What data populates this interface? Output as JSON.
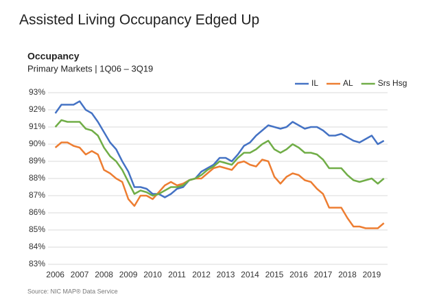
{
  "chart_data": {
    "type": "line",
    "page_title": "Assisted Living Occupancy Edged Up",
    "title": "Occupancy",
    "subtitle": "Primary Markets | 1Q06 – 3Q19",
    "source": "Source: NIC MAP® Data Service",
    "x": [
      2006,
      2006.25,
      2006.5,
      2006.75,
      2007,
      2007.25,
      2007.5,
      2007.75,
      2008,
      2008.25,
      2008.5,
      2008.75,
      2009,
      2009.25,
      2009.5,
      2009.75,
      2010,
      2010.25,
      2010.5,
      2010.75,
      2011,
      2011.25,
      2011.5,
      2011.75,
      2012,
      2012.25,
      2012.5,
      2012.75,
      2013,
      2013.25,
      2013.5,
      2013.75,
      2014,
      2014.25,
      2014.5,
      2014.75,
      2015,
      2015.25,
      2015.5,
      2015.75,
      2016,
      2016.25,
      2016.5,
      2016.75,
      2017,
      2017.25,
      2017.5,
      2017.75,
      2018,
      2018.25,
      2018.5,
      2018.75,
      2019,
      2019.25,
      2019.5
    ],
    "series": [
      {
        "name": "IL",
        "color": "#4472c4",
        "values": [
          91.8,
          92.3,
          92.3,
          92.3,
          92.5,
          92.0,
          91.8,
          91.3,
          90.7,
          90.1,
          89.7,
          89.0,
          88.4,
          87.5,
          87.5,
          87.4,
          87.1,
          87.1,
          86.9,
          87.1,
          87.4,
          87.5,
          87.9,
          88.0,
          88.4,
          88.6,
          88.8,
          89.2,
          89.2,
          89.0,
          89.4,
          89.9,
          90.1,
          90.5,
          90.8,
          91.1,
          91.0,
          90.9,
          91.0,
          91.3,
          91.1,
          90.9,
          91.0,
          91.0,
          90.8,
          90.5,
          90.5,
          90.6,
          90.4,
          90.2,
          90.1,
          90.3,
          90.5,
          90.0,
          90.2
        ]
      },
      {
        "name": "AL",
        "color": "#ed7d31",
        "values": [
          89.8,
          90.1,
          90.1,
          89.9,
          89.8,
          89.4,
          89.6,
          89.4,
          88.5,
          88.3,
          88.0,
          87.8,
          86.8,
          86.4,
          87.0,
          87.0,
          86.8,
          87.2,
          87.6,
          87.8,
          87.6,
          87.7,
          87.9,
          88.0,
          88.0,
          88.3,
          88.6,
          88.7,
          88.6,
          88.5,
          88.9,
          89.0,
          88.8,
          88.7,
          89.1,
          89.0,
          88.1,
          87.7,
          88.1,
          88.3,
          88.2,
          87.9,
          87.8,
          87.4,
          87.1,
          86.3,
          86.3,
          86.3,
          85.7,
          85.2,
          85.2,
          85.1,
          85.1,
          85.1,
          85.4
        ]
      },
      {
        "name": "Srs Hsg",
        "color": "#70ad47",
        "values": [
          91.0,
          91.4,
          91.3,
          91.3,
          91.3,
          90.9,
          90.8,
          90.5,
          89.8,
          89.3,
          89.0,
          88.5,
          87.8,
          87.1,
          87.3,
          87.2,
          87.0,
          87.1,
          87.3,
          87.5,
          87.5,
          87.6,
          87.9,
          88.0,
          88.2,
          88.5,
          88.7,
          89.0,
          88.9,
          88.8,
          89.2,
          89.5,
          89.5,
          89.7,
          90.0,
          90.2,
          89.7,
          89.5,
          89.7,
          90.0,
          89.8,
          89.5,
          89.5,
          89.4,
          89.1,
          88.6,
          88.6,
          88.6,
          88.2,
          87.9,
          87.8,
          87.9,
          88.0,
          87.7,
          88.0
        ]
      }
    ],
    "xlim": [
      2005.7,
      2019.65
    ],
    "xticks": [
      2006,
      2007,
      2008,
      2009,
      2010,
      2011,
      2012,
      2013,
      2014,
      2015,
      2016,
      2017,
      2018,
      2019
    ],
    "ylim": [
      83,
      93
    ],
    "yticks": [
      {
        "value": 83,
        "label": "83%"
      },
      {
        "value": 84,
        "label": "84%"
      },
      {
        "value": 85,
        "label": "85%"
      },
      {
        "value": 86,
        "label": "86%"
      },
      {
        "value": 87,
        "label": "87%"
      },
      {
        "value": 88,
        "label": "88%"
      },
      {
        "value": 89,
        "label": "89%"
      },
      {
        "value": 90,
        "label": "90%"
      },
      {
        "value": 91,
        "label": "91%"
      },
      {
        "value": 92,
        "label": "92%"
      },
      {
        "value": 93,
        "label": "93%"
      }
    ],
    "grid": true,
    "legend": "top-right"
  }
}
